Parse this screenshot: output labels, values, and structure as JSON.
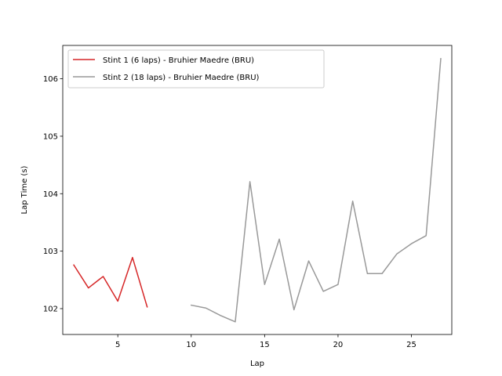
{
  "chart_data": {
    "type": "line",
    "title": "",
    "xlabel": "Lap",
    "ylabel": "Lap Time (s)",
    "xlim": [
      1.25,
      27.75
    ],
    "ylim": [
      101.55,
      106.58
    ],
    "xticks": [
      5,
      10,
      15,
      20,
      25
    ],
    "yticks": [
      102,
      103,
      104,
      105,
      106
    ],
    "grid": false,
    "legend_position": "upper-left",
    "series": [
      {
        "name": "Stint 1 (6 laps) - Bruhier Maedre (BRU)",
        "color": "#d62728",
        "x": [
          2,
          3,
          4,
          5,
          6,
          7
        ],
        "y": [
          102.76,
          102.36,
          102.56,
          102.13,
          102.89,
          102.03
        ]
      },
      {
        "name": "Stint 2 (18 laps) - Bruhier Maedre (BRU)",
        "color": "#999999",
        "x": [
          10,
          11,
          12,
          13,
          14,
          15,
          16,
          17,
          18,
          19,
          20,
          21,
          22,
          23,
          24,
          25,
          26,
          27
        ],
        "y": [
          102.06,
          102.01,
          101.88,
          101.77,
          104.21,
          102.42,
          103.21,
          101.98,
          102.83,
          102.3,
          102.42,
          103.87,
          102.61,
          102.61,
          102.95,
          103.13,
          103.27,
          106.35
        ]
      }
    ]
  }
}
